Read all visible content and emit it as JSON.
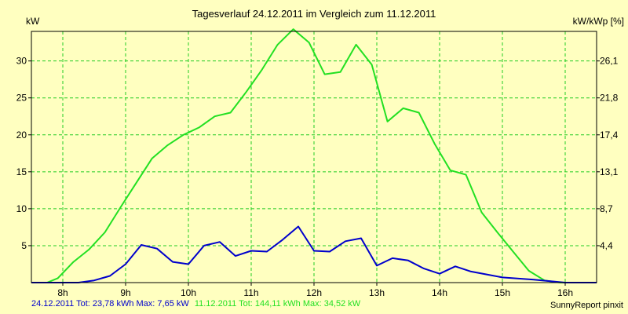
{
  "chart_data": {
    "type": "line",
    "title": "Tagesverlauf 24.12.2011 im Vergleich zum 11.12.2011",
    "ylabel_left": "kW",
    "ylabel_right": "kW/kWp [%]",
    "ylim": [
      0,
      34
    ],
    "yticks_left": [
      5,
      10,
      15,
      20,
      25,
      30
    ],
    "yticks_right": [
      {
        "value": 5,
        "label": "4,4"
      },
      {
        "value": 10,
        "label": "8,7"
      },
      {
        "value": 15,
        "label": "13,1"
      },
      {
        "value": 20,
        "label": "17,4"
      },
      {
        "value": 25,
        "label": "21,8"
      },
      {
        "value": 30,
        "label": "26,1"
      }
    ],
    "xlim": [
      7.5,
      16.5
    ],
    "xticks": [
      {
        "value": 8,
        "label": "8h"
      },
      {
        "value": 9,
        "label": "9h"
      },
      {
        "value": 10,
        "label": "10h"
      },
      {
        "value": 11,
        "label": "11h"
      },
      {
        "value": 12,
        "label": "12h"
      },
      {
        "value": 13,
        "label": "13h"
      },
      {
        "value": 14,
        "label": "14h"
      },
      {
        "value": 15,
        "label": "15h"
      },
      {
        "value": 16,
        "label": "16h"
      }
    ],
    "grid": true,
    "series": [
      {
        "name": "11.12.2011",
        "color": "#22e022",
        "points": [
          [
            7.5,
            0
          ],
          [
            7.75,
            0
          ],
          [
            7.92,
            0.6
          ],
          [
            8.17,
            2.8
          ],
          [
            8.42,
            4.5
          ],
          [
            8.67,
            6.8
          ],
          [
            8.92,
            10.2
          ],
          [
            9.17,
            13.5
          ],
          [
            9.42,
            16.8
          ],
          [
            9.67,
            18.6
          ],
          [
            9.92,
            20
          ],
          [
            10.17,
            21
          ],
          [
            10.42,
            22.5
          ],
          [
            10.67,
            23
          ],
          [
            10.92,
            25.8
          ],
          [
            11.17,
            28.8
          ],
          [
            11.42,
            32.2
          ],
          [
            11.67,
            34.3
          ],
          [
            11.92,
            32.5
          ],
          [
            12.17,
            28.2
          ],
          [
            12.42,
            28.5
          ],
          [
            12.67,
            32.2
          ],
          [
            12.92,
            29.5
          ],
          [
            13.17,
            21.8
          ],
          [
            13.42,
            23.6
          ],
          [
            13.67,
            23
          ],
          [
            13.92,
            18.8
          ],
          [
            14.17,
            15.2
          ],
          [
            14.42,
            14.6
          ],
          [
            14.67,
            9.5
          ],
          [
            14.92,
            6.8
          ],
          [
            15.17,
            4.2
          ],
          [
            15.42,
            1.6
          ],
          [
            15.67,
            0.3
          ],
          [
            15.92,
            0
          ],
          [
            16.5,
            0
          ]
        ]
      },
      {
        "name": "24.12.2011",
        "color": "#0000cc",
        "points": [
          [
            7.5,
            0
          ],
          [
            8.25,
            0
          ],
          [
            8.5,
            0.3
          ],
          [
            8.75,
            0.9
          ],
          [
            9.0,
            2.5
          ],
          [
            9.25,
            5.1
          ],
          [
            9.5,
            4.6
          ],
          [
            9.75,
            2.8
          ],
          [
            10.0,
            2.5
          ],
          [
            10.25,
            5.0
          ],
          [
            10.5,
            5.5
          ],
          [
            10.75,
            3.6
          ],
          [
            11.0,
            4.3
          ],
          [
            11.25,
            4.2
          ],
          [
            11.5,
            5.8
          ],
          [
            11.75,
            7.6
          ],
          [
            12.0,
            4.3
          ],
          [
            12.25,
            4.2
          ],
          [
            12.5,
            5.6
          ],
          [
            12.75,
            6.0
          ],
          [
            13.0,
            2.3
          ],
          [
            13.25,
            3.3
          ],
          [
            13.5,
            3.0
          ],
          [
            13.75,
            1.9
          ],
          [
            14.0,
            1.2
          ],
          [
            14.25,
            2.2
          ],
          [
            14.5,
            1.5
          ],
          [
            14.75,
            1.1
          ],
          [
            15.0,
            0.7
          ],
          [
            15.5,
            0.4
          ],
          [
            16.0,
            0
          ],
          [
            16.5,
            0
          ]
        ]
      }
    ],
    "footer": {
      "series_a_text": "24.12.2011 Tot: 23,78 kWh Max: 7,65 kW",
      "series_a_color": "#0000cc",
      "series_b_text": "11.12.2011 Tot: 144,11 kWh Max: 34,52 kW",
      "series_b_color": "#22e022",
      "brand": "SunnyReport pinxit"
    },
    "colors": {
      "background": "#ffffc0",
      "grid": "#22cc22",
      "axes": "#000000"
    }
  }
}
